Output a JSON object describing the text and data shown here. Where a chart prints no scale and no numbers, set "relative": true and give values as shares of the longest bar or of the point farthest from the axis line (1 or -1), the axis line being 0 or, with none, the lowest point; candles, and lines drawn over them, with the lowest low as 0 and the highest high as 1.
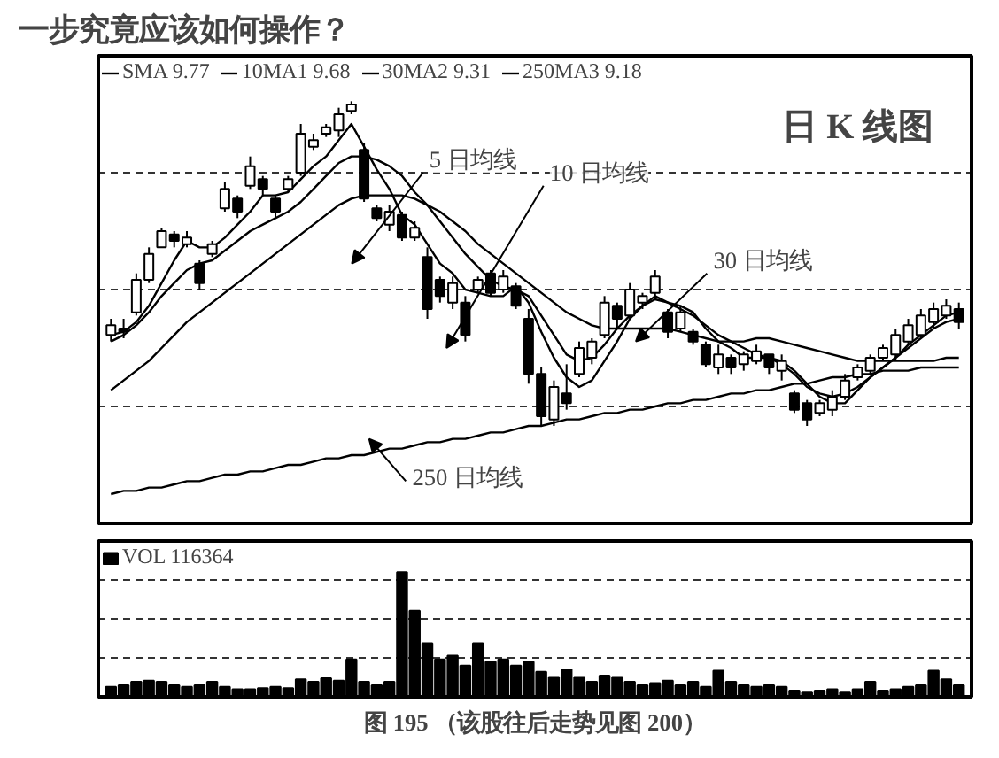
{
  "chart_data": [
    {
      "type": "candlestick",
      "relative": true,
      "legend": "top left",
      "grid": "y",
      "color": "#000000",
      "categories": [
        null,
        null,
        null,
        null,
        null,
        null,
        null,
        null,
        null,
        null,
        null,
        null,
        null,
        null,
        null,
        null,
        null,
        null,
        null,
        null,
        null,
        null,
        null,
        null,
        null,
        null,
        null,
        null,
        null,
        null,
        null,
        null,
        null,
        null,
        null,
        null,
        null,
        null,
        null,
        null,
        null,
        null,
        null,
        null,
        null,
        null,
        null,
        null,
        null,
        null,
        null,
        null,
        null,
        null,
        null,
        null,
        null,
        null,
        null,
        null,
        null,
        null,
        null,
        null,
        null,
        null,
        null,
        null
      ],
      "ohlc": [
        [
          0.28,
          0.33,
          0.26,
          0.31
        ],
        [
          0.3,
          0.33,
          0.27,
          0.29
        ],
        [
          0.35,
          0.47,
          0.34,
          0.45
        ],
        [
          0.45,
          0.55,
          0.44,
          0.53
        ],
        [
          0.55,
          0.61,
          0.55,
          0.6
        ],
        [
          0.59,
          0.6,
          0.55,
          0.57
        ],
        [
          0.56,
          0.6,
          0.55,
          0.58
        ],
        [
          0.5,
          0.51,
          0.42,
          0.44
        ],
        [
          0.53,
          0.57,
          0.52,
          0.56
        ],
        [
          0.67,
          0.75,
          0.66,
          0.73
        ],
        [
          0.7,
          0.71,
          0.64,
          0.66
        ],
        [
          0.74,
          0.83,
          0.73,
          0.8
        ],
        [
          0.76,
          0.77,
          0.71,
          0.73
        ],
        [
          0.7,
          0.71,
          0.64,
          0.66
        ],
        [
          0.73,
          0.77,
          0.72,
          0.76
        ],
        [
          0.78,
          0.93,
          0.77,
          0.9
        ],
        [
          0.86,
          0.9,
          0.85,
          0.88
        ],
        [
          0.9,
          0.93,
          0.89,
          0.92
        ],
        [
          0.91,
          0.98,
          0.89,
          0.96
        ],
        [
          0.97,
          1.0,
          0.96,
          0.99
        ],
        [
          0.85,
          0.87,
          0.69,
          0.7
        ],
        [
          0.67,
          0.68,
          0.63,
          0.64
        ],
        [
          0.62,
          0.68,
          0.6,
          0.66
        ],
        [
          0.65,
          0.66,
          0.57,
          0.58
        ],
        [
          0.58,
          0.63,
          0.57,
          0.61
        ],
        [
          0.52,
          0.55,
          0.33,
          0.36
        ],
        [
          0.45,
          0.46,
          0.38,
          0.4
        ],
        [
          0.38,
          0.46,
          0.36,
          0.44
        ],
        [
          0.38,
          0.4,
          0.26,
          0.28
        ],
        [
          0.42,
          0.46,
          0.41,
          0.45
        ],
        [
          0.47,
          0.48,
          0.4,
          0.41
        ],
        [
          0.42,
          0.48,
          0.41,
          0.46
        ],
        [
          0.43,
          0.44,
          0.36,
          0.37
        ],
        [
          0.33,
          0.36,
          0.13,
          0.16
        ],
        [
          0.16,
          0.18,
          0.0,
          0.03
        ],
        [
          0.02,
          0.14,
          0.0,
          0.12
        ],
        [
          0.1,
          0.19,
          0.05,
          0.07
        ],
        [
          0.16,
          0.26,
          0.15,
          0.24
        ],
        [
          0.21,
          0.27,
          0.19,
          0.26
        ],
        [
          0.28,
          0.4,
          0.27,
          0.38
        ],
        [
          0.37,
          0.38,
          0.3,
          0.33
        ],
        [
          0.34,
          0.44,
          0.33,
          0.42
        ],
        [
          0.38,
          0.41,
          0.36,
          0.4
        ],
        [
          0.41,
          0.48,
          0.4,
          0.46
        ],
        [
          0.35,
          0.36,
          0.27,
          0.29
        ],
        [
          0.3,
          0.37,
          0.29,
          0.35
        ],
        [
          0.29,
          0.3,
          0.25,
          0.26
        ],
        [
          0.25,
          0.26,
          0.18,
          0.19
        ],
        [
          0.18,
          0.25,
          0.16,
          0.22
        ],
        [
          0.21,
          0.22,
          0.16,
          0.18
        ],
        [
          0.19,
          0.23,
          0.17,
          0.22
        ],
        [
          0.2,
          0.25,
          0.19,
          0.23
        ],
        [
          0.22,
          0.22,
          0.16,
          0.18
        ],
        [
          0.17,
          0.22,
          0.14,
          0.2
        ],
        [
          0.1,
          0.11,
          0.04,
          0.05
        ],
        [
          0.07,
          0.08,
          0.0,
          0.02
        ],
        [
          0.04,
          0.08,
          0.03,
          0.07
        ],
        [
          0.05,
          0.11,
          0.03,
          0.09
        ],
        [
          0.09,
          0.16,
          0.08,
          0.14
        ],
        [
          0.15,
          0.19,
          0.14,
          0.18
        ],
        [
          0.17,
          0.22,
          0.16,
          0.21
        ],
        [
          0.21,
          0.25,
          0.2,
          0.24
        ],
        [
          0.22,
          0.3,
          0.2,
          0.28
        ],
        [
          0.26,
          0.33,
          0.25,
          0.31
        ],
        [
          0.28,
          0.36,
          0.27,
          0.34
        ],
        [
          0.32,
          0.38,
          0.3,
          0.36
        ],
        [
          0.34,
          0.39,
          0.33,
          0.37
        ],
        [
          0.36,
          0.38,
          0.3,
          0.32
        ]
      ],
      "series": [
        {
          "type": "line",
          "name": "SMA 9.77",
          "color": "#000000",
          "values": [
            0.28,
            0.29,
            0.32,
            0.37,
            0.44,
            0.51,
            0.57,
            0.55,
            0.55,
            0.58,
            0.62,
            0.66,
            0.71,
            0.71,
            0.72,
            0.76,
            0.8,
            0.83,
            0.88,
            0.93,
            0.86,
            0.79,
            0.73,
            0.65,
            0.62,
            0.56,
            0.5,
            0.47,
            0.42,
            0.41,
            0.4,
            0.4,
            0.43,
            0.38,
            0.29,
            0.21,
            0.15,
            0.12,
            0.14,
            0.2,
            0.26,
            0.33,
            0.37,
            0.4,
            0.38,
            0.37,
            0.35,
            0.3,
            0.26,
            0.24,
            0.21,
            0.21,
            0.21,
            0.2,
            0.17,
            0.13,
            0.09,
            0.07,
            0.07,
            0.11,
            0.15,
            0.18,
            0.21,
            0.25,
            0.28,
            0.31,
            0.34,
            0.35
          ]
        },
        {
          "type": "line",
          "name": "10MA1 9.68",
          "color": "#000000",
          "values": [
            0.26,
            0.28,
            0.31,
            0.35,
            0.4,
            0.44,
            0.48,
            0.5,
            0.51,
            0.54,
            0.57,
            0.6,
            0.62,
            0.64,
            0.66,
            0.69,
            0.73,
            0.77,
            0.81,
            0.83,
            0.83,
            0.82,
            0.8,
            0.77,
            0.72,
            0.68,
            0.63,
            0.58,
            0.53,
            0.49,
            0.45,
            0.43,
            0.42,
            0.4,
            0.34,
            0.28,
            0.22,
            0.2,
            0.21,
            0.25,
            0.3,
            0.34,
            0.37,
            0.39,
            0.38,
            0.36,
            0.34,
            0.31,
            0.28,
            0.26,
            0.24,
            0.22,
            0.21,
            0.19,
            0.16,
            0.12,
            0.1,
            0.09,
            0.1,
            0.12,
            0.15,
            0.18,
            0.21,
            0.24,
            0.27,
            0.3,
            0.32,
            0.33
          ]
        },
        {
          "type": "line",
          "name": "30MA2 9.31",
          "color": "#000000",
          "values": [
            0.11,
            0.14,
            0.17,
            0.2,
            0.24,
            0.28,
            0.32,
            0.35,
            0.38,
            0.41,
            0.44,
            0.47,
            0.5,
            0.53,
            0.56,
            0.59,
            0.62,
            0.65,
            0.68,
            0.7,
            0.71,
            0.71,
            0.71,
            0.71,
            0.7,
            0.68,
            0.66,
            0.63,
            0.6,
            0.56,
            0.53,
            0.5,
            0.47,
            0.44,
            0.41,
            0.38,
            0.35,
            0.33,
            0.31,
            0.3,
            0.3,
            0.3,
            0.3,
            0.3,
            0.3,
            0.29,
            0.28,
            0.27,
            0.26,
            0.26,
            0.26,
            0.27,
            0.27,
            0.26,
            0.25,
            0.24,
            0.23,
            0.22,
            0.21,
            0.2,
            0.2,
            0.2,
            0.2,
            0.2,
            0.2,
            0.2,
            0.21,
            0.21
          ]
        },
        {
          "type": "line",
          "name": "250MA3 9.18",
          "color": "#000000",
          "values": [
            -0.21,
            -0.2,
            -0.2,
            -0.19,
            -0.19,
            -0.18,
            -0.17,
            -0.17,
            -0.16,
            -0.15,
            -0.15,
            -0.14,
            -0.14,
            -0.13,
            -0.12,
            -0.12,
            -0.11,
            -0.1,
            -0.1,
            -0.09,
            -0.09,
            -0.08,
            -0.07,
            -0.07,
            -0.06,
            -0.05,
            -0.05,
            -0.04,
            -0.04,
            -0.03,
            -0.02,
            -0.02,
            -0.01,
            0.0,
            0.0,
            0.01,
            0.02,
            0.02,
            0.03,
            0.04,
            0.04,
            0.05,
            0.05,
            0.06,
            0.07,
            0.07,
            0.08,
            0.08,
            0.09,
            0.1,
            0.1,
            0.11,
            0.11,
            0.12,
            0.13,
            0.13,
            0.14,
            0.15,
            0.15,
            0.16,
            0.16,
            0.17,
            0.17,
            0.17,
            0.18,
            0.18,
            0.18,
            0.18
          ]
        }
      ],
      "annotations": [
        "一步究竟应该如何操作？",
        "日 K 线图",
        "5 日均线",
        "10 日均线",
        "30 日均线",
        "250 日均线"
      ]
    },
    {
      "type": "bar",
      "relative": true,
      "legend": "top left",
      "grid": "y",
      "categories": [
        null,
        null,
        null,
        null,
        null,
        null,
        null,
        null,
        null,
        null,
        null,
        null,
        null,
        null,
        null,
        null,
        null,
        null,
        null,
        null,
        null,
        null,
        null,
        null,
        null,
        null,
        null,
        null,
        null,
        null,
        null,
        null,
        null,
        null,
        null,
        null,
        null,
        null,
        null,
        null,
        null,
        null,
        null,
        null,
        null,
        null,
        null,
        null,
        null,
        null,
        null,
        null,
        null,
        null,
        null,
        null,
        null,
        null,
        null,
        null,
        null,
        null,
        null,
        null,
        null,
        null,
        null,
        null
      ],
      "series": [
        {
          "name": "VOL 116364",
          "color": "#000000",
          "values": [
            0.08,
            0.1,
            0.12,
            0.13,
            0.12,
            0.1,
            0.08,
            0.1,
            0.12,
            0.08,
            0.06,
            0.06,
            0.07,
            0.08,
            0.07,
            0.14,
            0.12,
            0.15,
            0.13,
            0.3,
            0.12,
            0.1,
            0.12,
            1.0,
            0.69,
            0.43,
            0.3,
            0.33,
            0.25,
            0.43,
            0.28,
            0.3,
            0.25,
            0.28,
            0.2,
            0.16,
            0.22,
            0.16,
            0.12,
            0.17,
            0.16,
            0.12,
            0.1,
            0.11,
            0.13,
            0.1,
            0.12,
            0.08,
            0.21,
            0.12,
            0.1,
            0.08,
            0.1,
            0.08,
            0.05,
            0.04,
            0.05,
            0.06,
            0.04,
            0.06,
            0.12,
            0.05,
            0.06,
            0.08,
            0.1,
            0.21,
            0.14,
            0.1
          ]
        }
      ],
      "annotations": [
        "图 195 （该股往后走势见图 200）"
      ]
    }
  ]
}
